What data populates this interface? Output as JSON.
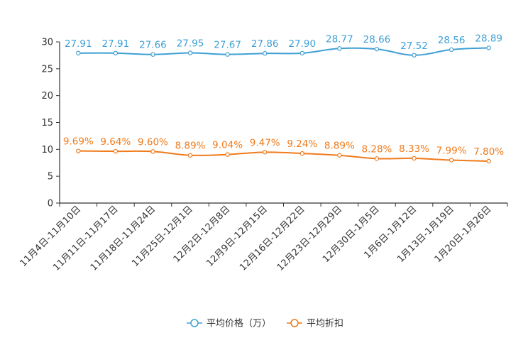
{
  "chart_data": {
    "type": "line",
    "title": "",
    "xlabel": "",
    "ylabel": "",
    "ylim": [
      0,
      30
    ],
    "yticks": [
      0,
      5,
      10,
      15,
      20,
      25,
      30
    ],
    "grid": false,
    "legend_position": "bottom-center",
    "categories": [
      "11月4日-11月10日",
      "11月11日-11月17日",
      "11月18日-11月24日",
      "11月25日-12月1日",
      "12月2日-12月8日",
      "12月9日-12月15日",
      "12月16日-12月22日",
      "12月23日-12月29日",
      "12月30日-1月5日",
      "1月6日-1月12日",
      "1月13日-1月19日",
      "1月20日-1月26日"
    ],
    "series": [
      {
        "name": "平均价格（万）",
        "color": "#3fa0d4",
        "values": [
          27.91,
          27.91,
          27.66,
          27.95,
          27.67,
          27.86,
          27.9,
          28.77,
          28.66,
          27.52,
          28.56,
          28.89
        ],
        "labels": [
          "27.91",
          "27.91",
          "27.66",
          "27.95",
          "27.67",
          "27.86",
          "27.90",
          "28.77",
          "28.66",
          "27.52",
          "28.56",
          "28.89"
        ]
      },
      {
        "name": "平均折扣",
        "color": "#f07b1c",
        "values": [
          9.69,
          9.64,
          9.6,
          8.89,
          9.04,
          9.47,
          9.24,
          8.89,
          8.28,
          8.33,
          7.99,
          7.8
        ],
        "labels": [
          "9.69%",
          "9.64%",
          "9.60%",
          "8.89%",
          "9.04%",
          "9.47%",
          "9.24%",
          "8.89%",
          "8.28%",
          "8.33%",
          "7.99%",
          "7.80%"
        ]
      }
    ]
  }
}
